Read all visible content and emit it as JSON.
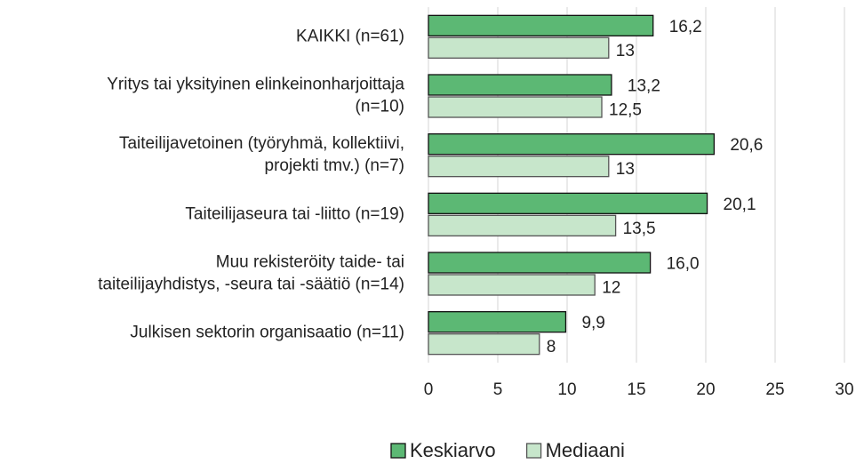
{
  "chart_data": {
    "type": "bar",
    "orientation": "horizontal",
    "categories": [
      [
        "KAIKKI (n=61)"
      ],
      [
        "Yritys tai yksityinen elinkeinonharjoittaja",
        "(n=10)"
      ],
      [
        "Taiteilijavetoinen (työryhmä, kollektiivi,",
        "projekti tmv.) (n=7)"
      ],
      [
        "Taiteilijaseura tai -liitto (n=19)"
      ],
      [
        "Muu rekisteröity taide- tai",
        "taiteilijayhdistys, -seura tai -säätiö (n=14)"
      ],
      [
        "Julkisen sektorin organisaatio (n=11)"
      ]
    ],
    "series": [
      {
        "name": "Keskiarvo",
        "color": "#5cb874",
        "stroke": "#111",
        "values": [
          16.2,
          13.2,
          20.6,
          20.1,
          16.0,
          9.9
        ],
        "value_labels": [
          "16,2",
          "13,2",
          "20,6",
          "20,1",
          "16,0",
          "9,9"
        ]
      },
      {
        "name": "Mediaani",
        "color": "#c7e6cb",
        "stroke": "#555",
        "values": [
          13,
          12.5,
          13,
          13.5,
          12,
          8
        ],
        "value_labels": [
          "13",
          "12,5",
          "13",
          "13,5",
          "12",
          "8"
        ]
      }
    ],
    "xlim": [
      0,
      30
    ],
    "xticks": [
      0,
      5,
      10,
      15,
      20,
      25,
      30
    ],
    "grid": true,
    "legend": "bottom"
  }
}
